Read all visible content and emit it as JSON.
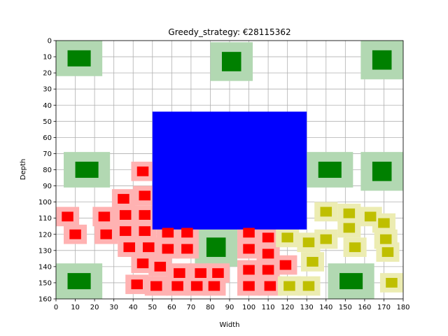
{
  "chart_data": {
    "type": "scatter",
    "title": "Greedy_strategy: €28115362",
    "xlabel": "Width",
    "ylabel": "Depth",
    "xlim": [
      0,
      180
    ],
    "ylim": [
      160,
      0
    ],
    "y_inverted": true,
    "grid": true,
    "x_ticks": [
      0,
      10,
      20,
      30,
      40,
      50,
      60,
      70,
      80,
      90,
      100,
      110,
      120,
      130,
      140,
      150,
      160,
      170,
      180
    ],
    "y_ticks": [
      0,
      10,
      20,
      30,
      40,
      50,
      60,
      70,
      80,
      90,
      100,
      110,
      120,
      130,
      140,
      150,
      160
    ],
    "colors": {
      "green_core": "#008000",
      "green_halo": "#b2d8b2",
      "red_core": "#ff0000",
      "red_halo": "#ffb2b2",
      "yellow_core": "#bfbf00",
      "yellow_halo": "#ececb2",
      "blue": "#0000ff"
    },
    "blocks": [
      {
        "color": "blue",
        "x0": 50,
        "x1": 130,
        "y0": 44,
        "y1": 117
      }
    ],
    "series": [
      {
        "color": "green",
        "halo": 12,
        "items": [
          {
            "x": 12,
            "y": 11,
            "w": 12,
            "h": 10
          },
          {
            "x": 91,
            "y": 13,
            "w": 10,
            "h": 12
          },
          {
            "x": 169,
            "y": 12,
            "w": 10,
            "h": 12
          },
          {
            "x": 16,
            "y": 80,
            "w": 12,
            "h": 10
          },
          {
            "x": 142,
            "y": 80,
            "w": 12,
            "h": 10
          },
          {
            "x": 169,
            "y": 81,
            "w": 10,
            "h": 12
          },
          {
            "x": 83,
            "y": 128,
            "w": 10,
            "h": 12
          },
          {
            "x": 12,
            "y": 149,
            "w": 12,
            "h": 10
          },
          {
            "x": 153,
            "y": 149,
            "w": 12,
            "h": 10
          }
        ]
      },
      {
        "color": "red",
        "halo": 6,
        "items": [
          {
            "x": 6,
            "y": 109
          },
          {
            "x": 10,
            "y": 120
          },
          {
            "x": 25,
            "y": 109
          },
          {
            "x": 26,
            "y": 120
          },
          {
            "x": 35,
            "y": 98
          },
          {
            "x": 36,
            "y": 108
          },
          {
            "x": 36,
            "y": 118
          },
          {
            "x": 38,
            "y": 128
          },
          {
            "x": 45,
            "y": 81
          },
          {
            "x": 46,
            "y": 96
          },
          {
            "x": 46,
            "y": 108
          },
          {
            "x": 46,
            "y": 118
          },
          {
            "x": 48,
            "y": 128
          },
          {
            "x": 45,
            "y": 138
          },
          {
            "x": 42,
            "y": 151
          },
          {
            "x": 54,
            "y": 140
          },
          {
            "x": 52,
            "y": 152
          },
          {
            "x": 58,
            "y": 119
          },
          {
            "x": 58,
            "y": 129
          },
          {
            "x": 64,
            "y": 144
          },
          {
            "x": 63,
            "y": 152
          },
          {
            "x": 68,
            "y": 119
          },
          {
            "x": 68,
            "y": 129
          },
          {
            "x": 73,
            "y": 152
          },
          {
            "x": 75,
            "y": 144
          },
          {
            "x": 82,
            "y": 152
          },
          {
            "x": 84,
            "y": 144
          },
          {
            "x": 100,
            "y": 119
          },
          {
            "x": 100,
            "y": 129
          },
          {
            "x": 100,
            "y": 142
          },
          {
            "x": 100,
            "y": 152
          },
          {
            "x": 110,
            "y": 122
          },
          {
            "x": 110,
            "y": 132
          },
          {
            "x": 110,
            "y": 142
          },
          {
            "x": 111,
            "y": 152
          },
          {
            "x": 119,
            "y": 139
          }
        ]
      },
      {
        "color": "yellow",
        "halo": 6,
        "items": [
          {
            "x": 120,
            "y": 122
          },
          {
            "x": 121,
            "y": 152
          },
          {
            "x": 131,
            "y": 125
          },
          {
            "x": 131,
            "y": 152
          },
          {
            "x": 133,
            "y": 137
          },
          {
            "x": 140,
            "y": 106
          },
          {
            "x": 140,
            "y": 123
          },
          {
            "x": 152,
            "y": 107
          },
          {
            "x": 152,
            "y": 116
          },
          {
            "x": 155,
            "y": 128
          },
          {
            "x": 163,
            "y": 109
          },
          {
            "x": 170,
            "y": 113
          },
          {
            "x": 171,
            "y": 123
          },
          {
            "x": 172,
            "y": 131
          },
          {
            "x": 174,
            "y": 150
          }
        ]
      }
    ]
  }
}
